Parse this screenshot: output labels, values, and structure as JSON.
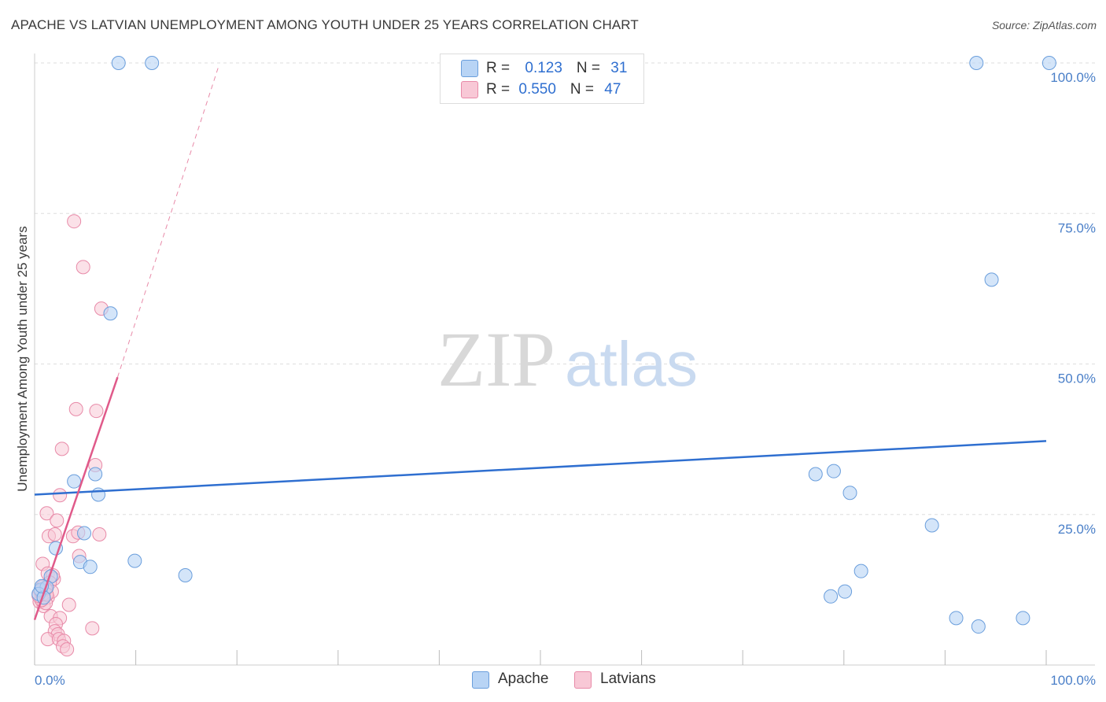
{
  "title": "APACHE VS LATVIAN UNEMPLOYMENT AMONG YOUTH UNDER 25 YEARS CORRELATION CHART",
  "source": "Source: ZipAtlas.com",
  "watermark": {
    "zip": "ZIP",
    "atlas": "atlas"
  },
  "legend": {
    "apache": {
      "r_label": "R = ",
      "r_value": "0.123",
      "n_label": "N = ",
      "n_value": "31"
    },
    "latvians": {
      "r_label": "R = ",
      "r_value": "0.550",
      "n_label": "N = ",
      "n_value": "47"
    }
  },
  "bottom_legend": {
    "apache": "Apache",
    "latvians": "Latvians"
  },
  "colors": {
    "apache_fill": "#b8d4f5",
    "apache_stroke": "#6a9edc",
    "apache_line": "#2f6fd0",
    "latvians_fill": "#f8c8d6",
    "latvians_stroke": "#e88aa8",
    "latvians_line": "#e05a8a",
    "grid": "#dddddd",
    "axis_text": "#4a7fc8"
  },
  "chart_data": {
    "type": "scatter",
    "title": "APACHE VS LATVIAN UNEMPLOYMENT AMONG YOUTH UNDER 25 YEARS CORRELATION CHART",
    "xlabel": "",
    "ylabel": "Unemployment Among Youth under 25 years",
    "xlim": [
      0,
      100
    ],
    "ylim": [
      0,
      100
    ],
    "x_tick_labels": [
      "0.0%",
      "100.0%"
    ],
    "y_ticks": [
      25,
      50,
      75,
      100
    ],
    "y_tick_labels": [
      "25.0%",
      "50.0%",
      "75.0%",
      "100.0%"
    ],
    "series": [
      {
        "name": "Apache",
        "points": [
          [
            8.3,
            100
          ],
          [
            11.6,
            100
          ],
          [
            93.1,
            100
          ],
          [
            100.3,
            100
          ],
          [
            7.5,
            58.4
          ],
          [
            94.6,
            64
          ],
          [
            3.9,
            30.5
          ],
          [
            6.0,
            31.7
          ],
          [
            6.3,
            28.3
          ],
          [
            77.2,
            31.7
          ],
          [
            79.0,
            32.2
          ],
          [
            80.6,
            28.6
          ],
          [
            88.7,
            23.2
          ],
          [
            2.1,
            19.4
          ],
          [
            4.9,
            21.9
          ],
          [
            4.5,
            17.1
          ],
          [
            5.5,
            16.3
          ],
          [
            9.9,
            17.3
          ],
          [
            14.9,
            14.9
          ],
          [
            1.6,
            14.7
          ],
          [
            81.7,
            15.6
          ],
          [
            78.7,
            11.4
          ],
          [
            80.1,
            12.2
          ],
          [
            91.1,
            7.8
          ],
          [
            93.3,
            6.4
          ],
          [
            97.7,
            7.8
          ],
          [
            0.6,
            12.5
          ],
          [
            1.2,
            12.9
          ],
          [
            0.4,
            11.8
          ],
          [
            0.9,
            11.2
          ],
          [
            0.7,
            13.1
          ]
        ],
        "trend": {
          "x": [
            0,
            100
          ],
          "y": [
            28.3,
            37.2
          ]
        }
      },
      {
        "name": "Latvians",
        "points": [
          [
            3.9,
            73.7
          ],
          [
            4.8,
            66.1
          ],
          [
            6.6,
            59.2
          ],
          [
            4.1,
            42.5
          ],
          [
            6.1,
            42.2
          ],
          [
            2.7,
            35.9
          ],
          [
            6.0,
            33.2
          ],
          [
            2.5,
            28.2
          ],
          [
            1.2,
            25.2
          ],
          [
            2.2,
            24.0
          ],
          [
            1.4,
            21.4
          ],
          [
            2.0,
            21.7
          ],
          [
            3.8,
            21.4
          ],
          [
            4.3,
            22.0
          ],
          [
            6.4,
            21.7
          ],
          [
            4.4,
            18.1
          ],
          [
            0.8,
            16.8
          ],
          [
            1.3,
            15.2
          ],
          [
            1.9,
            14.3
          ],
          [
            1.8,
            14.9
          ],
          [
            0.6,
            12.0
          ],
          [
            1.3,
            11.2
          ],
          [
            0.5,
            10.5
          ],
          [
            0.9,
            9.8
          ],
          [
            1.1,
            10.3
          ],
          [
            3.4,
            10.0
          ],
          [
            1.6,
            8.1
          ],
          [
            2.5,
            7.8
          ],
          [
            2.1,
            6.8
          ],
          [
            2.0,
            5.6
          ],
          [
            2.3,
            5.1
          ],
          [
            1.3,
            4.3
          ],
          [
            2.4,
            4.3
          ],
          [
            2.9,
            4.0
          ],
          [
            2.8,
            3.1
          ],
          [
            3.2,
            2.6
          ],
          [
            5.7,
            6.1
          ],
          [
            0.7,
            10.8
          ],
          [
            1.0,
            12.8
          ],
          [
            0.4,
            11.5
          ],
          [
            1.5,
            13.7
          ],
          [
            0.8,
            13.0
          ],
          [
            1.7,
            12.2
          ],
          [
            0.9,
            11.9
          ],
          [
            1.1,
            12.6
          ],
          [
            0.6,
            12.3
          ],
          [
            1.2,
            11.7
          ]
        ],
        "trend": {
          "x": [
            0,
            8.2
          ],
          "y": [
            7.5,
            47.8
          ]
        },
        "trend_dashed": {
          "x": [
            8.2,
            18.2
          ],
          "y": [
            47.8,
            99.5
          ]
        }
      }
    ]
  }
}
